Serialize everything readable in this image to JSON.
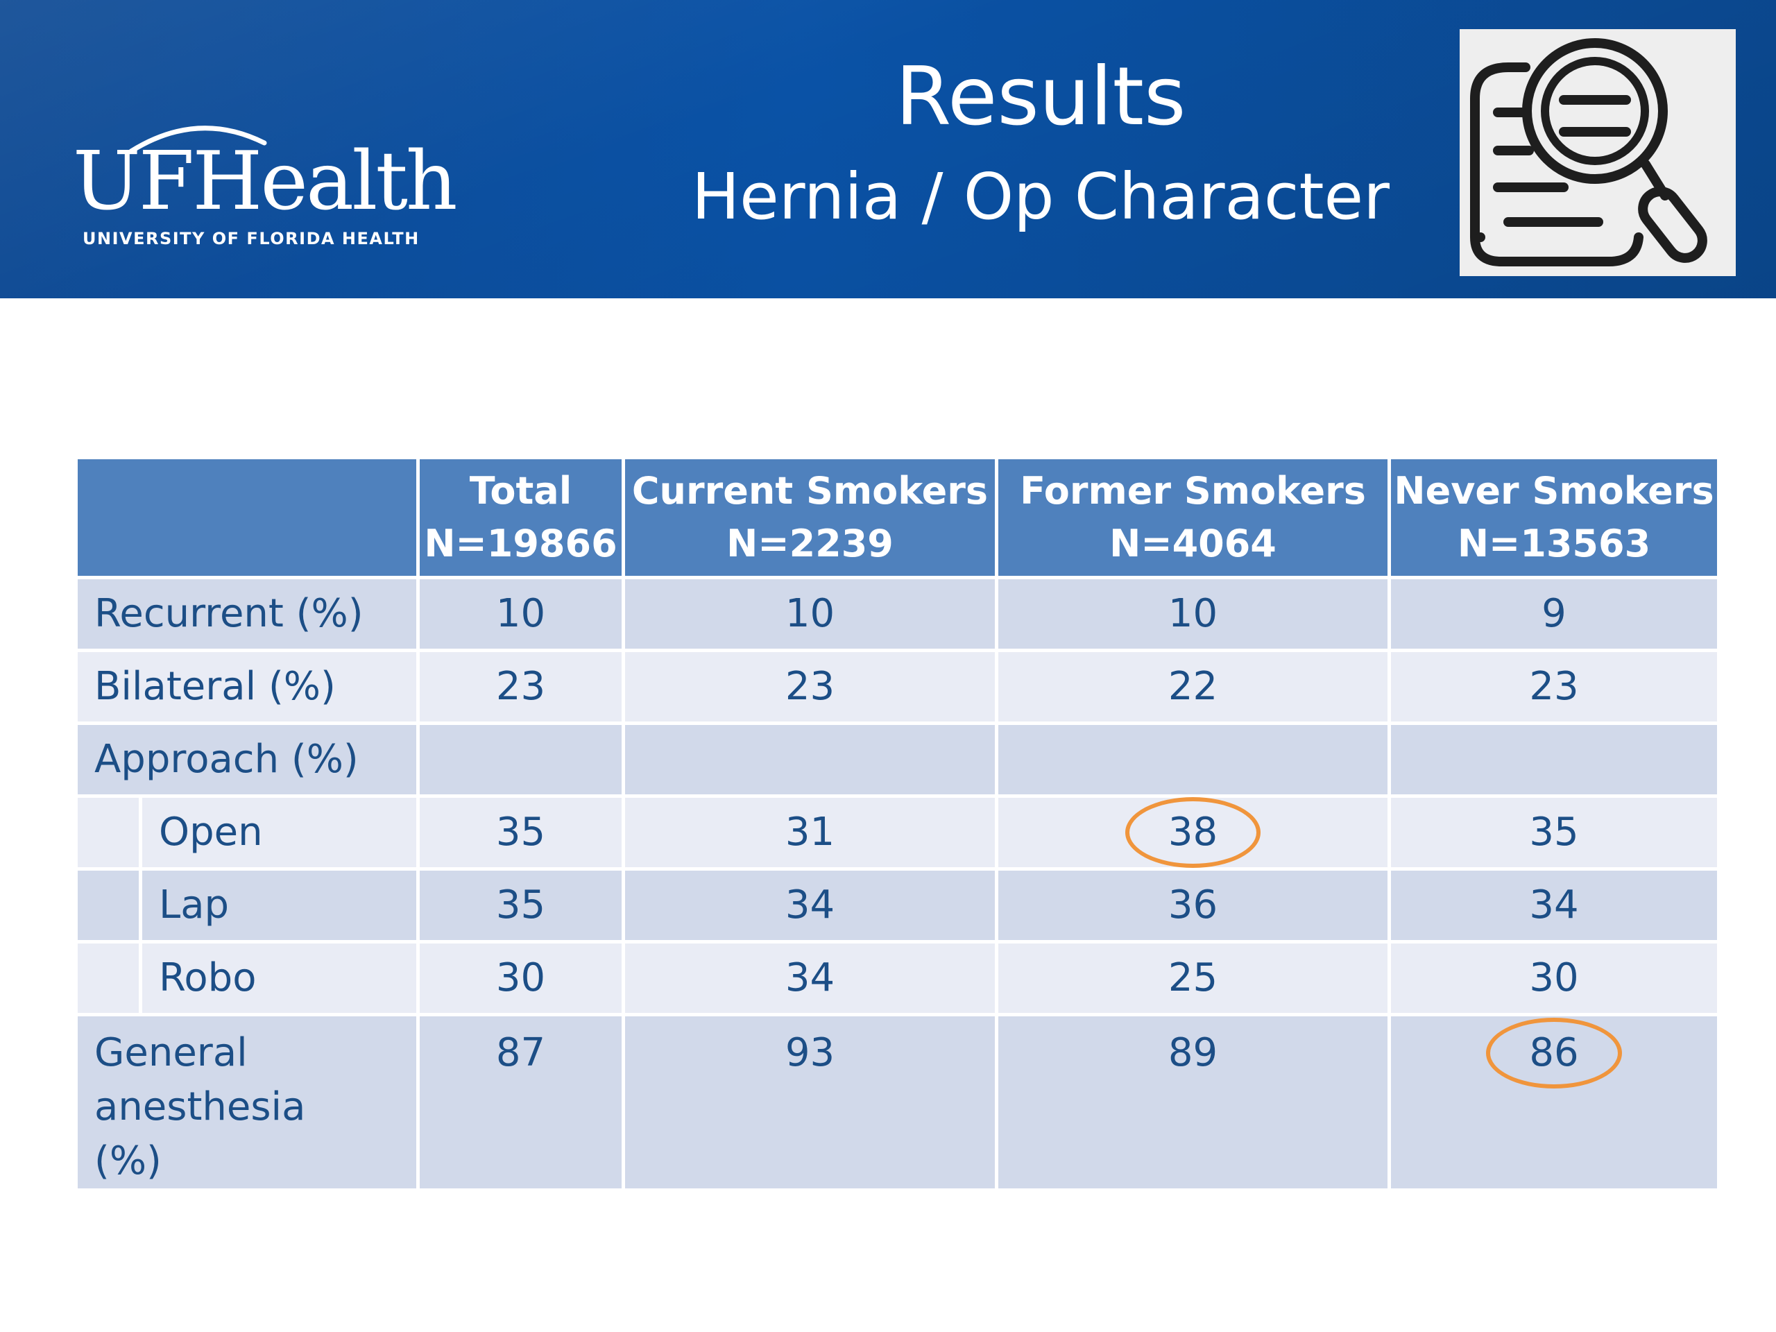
{
  "header": {
    "title": "Results",
    "subtitle": "Hernia / Op Character",
    "logo_text": "UFHealth",
    "logo_subtext": "UNIVERSITY OF FLORIDA HEALTH",
    "icon": "document-search-icon"
  },
  "table": {
    "columns": [
      {
        "name": "Total",
        "n": "N=19866"
      },
      {
        "name": "Current Smokers",
        "n": "N=2239"
      },
      {
        "name": "Former Smokers",
        "n": "N=4064"
      },
      {
        "name": "Never Smokers",
        "n": "N=13563"
      }
    ],
    "rows": [
      {
        "label": "Recurrent (%)",
        "values": [
          "10",
          "10",
          "10",
          "9"
        ]
      },
      {
        "label": "Bilateral (%)",
        "values": [
          "23",
          "23",
          "22",
          "23"
        ]
      },
      {
        "label": "Approach (%)",
        "values": [
          "",
          "",
          "",
          ""
        ]
      },
      {
        "label": "Open",
        "values": [
          "35",
          "31",
          "38",
          "35"
        ]
      },
      {
        "label": "Lap",
        "values": [
          "35",
          "34",
          "36",
          "34"
        ]
      },
      {
        "label": "Robo",
        "values": [
          "30",
          "34",
          "25",
          "30"
        ]
      },
      {
        "label": "General anesthesia (%)",
        "values": [
          "87",
          "93",
          "89",
          "86"
        ]
      }
    ]
  },
  "highlight_color": "#f0953c"
}
